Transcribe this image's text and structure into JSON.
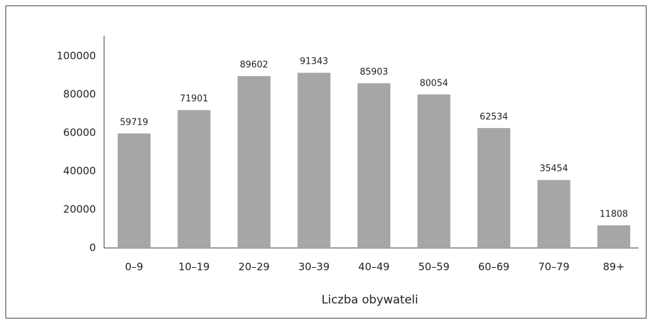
{
  "chart_data": {
    "type": "bar",
    "xlabel": "Liczba obywateli",
    "categories": [
      "0–9",
      "10–19",
      "20–29",
      "30–39",
      "40–49",
      "50–59",
      "60–69",
      "70–79",
      "89+"
    ],
    "values": [
      59719,
      71901,
      89602,
      91343,
      85903,
      80054,
      62534,
      35454,
      11808
    ],
    "color": "#a6a6a8",
    "ylim": [
      0,
      100000
    ],
    "yticks": [
      0,
      20000,
      40000,
      60000,
      80000,
      100000
    ],
    "grid": false
  }
}
